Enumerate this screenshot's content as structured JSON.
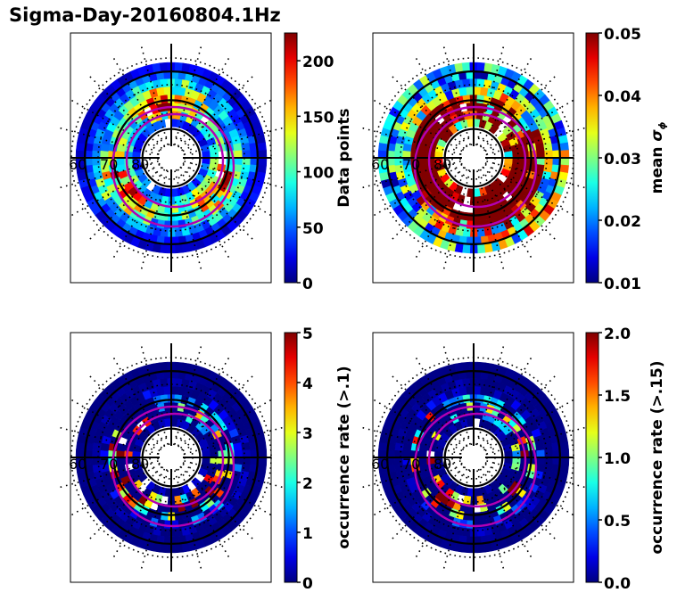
{
  "title": "Sigma-Day-20160804.1Hz",
  "chart_data": [
    {
      "type": "heatmap",
      "projection": "polar (magnetic latitude / MLT)",
      "title": "",
      "lat_labels": [
        "60",
        "70",
        "80"
      ],
      "lat_circles": [
        80,
        70,
        60
      ],
      "lat_range": [
        55,
        90
      ],
      "colorbar": {
        "label": "Data points",
        "ticks": [
          "0",
          "50",
          "100",
          "150",
          "200"
        ],
        "range": [
          0,
          225
        ]
      },
      "ring_values": [
        40,
        90,
        130,
        120,
        100,
        70,
        40,
        20
      ],
      "field": "counts"
    },
    {
      "type": "heatmap",
      "projection": "polar (magnetic latitude / MLT)",
      "title": "",
      "lat_labels": [
        "60",
        "70",
        "80"
      ],
      "lat_circles": [
        80,
        70,
        60
      ],
      "lat_range": [
        55,
        90
      ],
      "colorbar": {
        "label": "mean σφ",
        "label_main": "mean ",
        "label_sym": "σ",
        "label_sub": "ϕ",
        "ticks": [
          "0.01",
          "0.02",
          "0.03",
          "0.04",
          "0.05"
        ],
        "range": [
          0.01,
          0.05
        ]
      },
      "ring_values": [
        0.035,
        0.045,
        0.05,
        0.04,
        0.03,
        0.025,
        0.022,
        0.022
      ],
      "field": "sigma"
    },
    {
      "type": "heatmap",
      "projection": "polar (magnetic latitude / MLT)",
      "title": "",
      "lat_labels": [
        "60",
        "70",
        "80"
      ],
      "lat_circles": [
        80,
        70,
        60
      ],
      "lat_range": [
        55,
        90
      ],
      "colorbar": {
        "label": "occurrence rate (>.1)",
        "ticks": [
          "0",
          "1",
          "2",
          "3",
          "4",
          "5"
        ],
        "range": [
          0,
          5
        ]
      },
      "ring_values": [
        0.3,
        1.5,
        2.5,
        1.5,
        0.5,
        0.2,
        0.1,
        0.05
      ],
      "field": "occ1"
    },
    {
      "type": "heatmap",
      "projection": "polar (magnetic latitude / MLT)",
      "title": "",
      "lat_labels": [
        "60",
        "70",
        "80"
      ],
      "lat_circles": [
        80,
        70,
        60
      ],
      "lat_range": [
        55,
        90
      ],
      "colorbar": {
        "label": "occurrence rate (>.15)",
        "ticks": [
          "0.0",
          "0.5",
          "1.0",
          "1.5",
          "2.0"
        ],
        "range": [
          0,
          2
        ]
      },
      "ring_values": [
        0.1,
        0.6,
        1.0,
        0.6,
        0.2,
        0.08,
        0.04,
        0.02
      ],
      "field": "occ15"
    }
  ],
  "colors": {
    "oval": "#b300b3",
    "grid": "#000000"
  }
}
